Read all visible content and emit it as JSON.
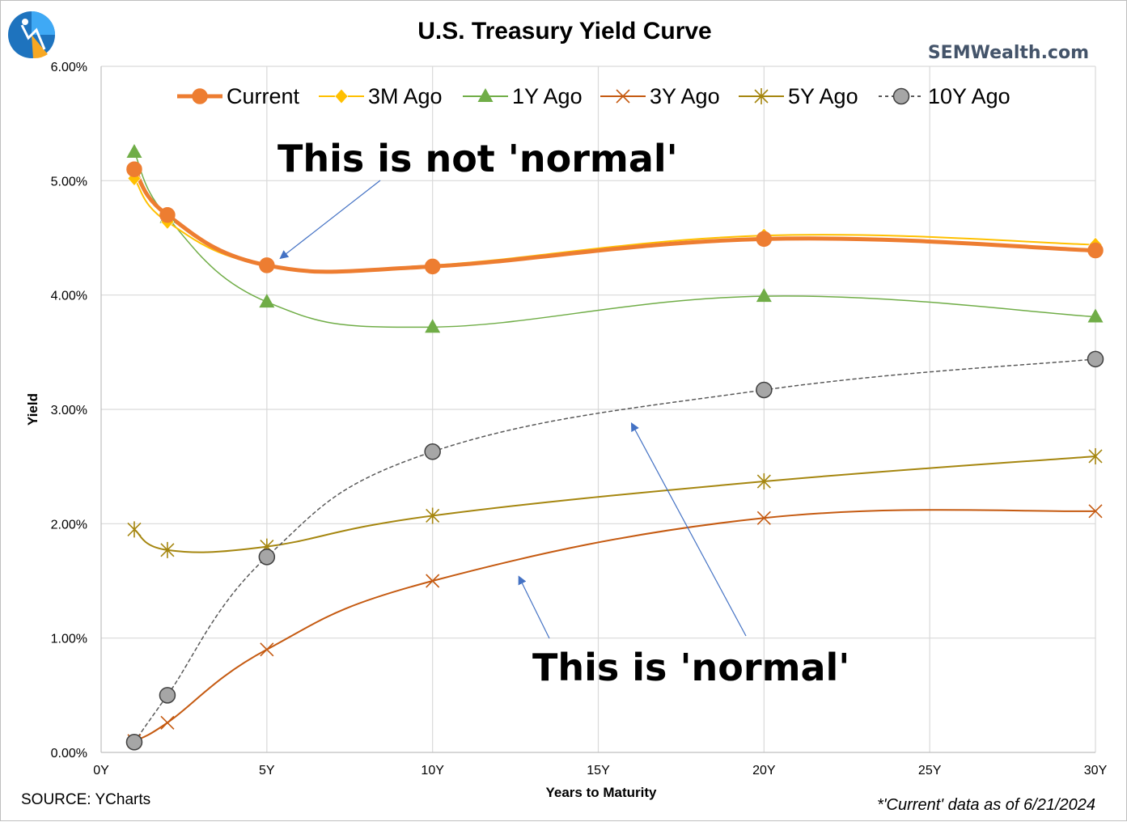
{
  "brand": {
    "site": "SEMWealth.com",
    "logo_icon": "semwealth-logo-icon"
  },
  "source_note": "SOURCE: YCharts",
  "footnote": "*'Current' data as of 6/21/2024",
  "colors": {
    "current": "#ed7d31",
    "m3": "#ffc000",
    "y1": "#70ad47",
    "y3": "#c55a11",
    "y5": "#a5860f",
    "y10": "#7f7f7f",
    "grid": "#d9d9d9",
    "arrow": "#4472c4"
  },
  "chart_data": {
    "type": "line",
    "title": "U.S. Treasury Yield Curve",
    "xlabel": "Years to Maturity",
    "ylabel": "Yield",
    "xlim": [
      0,
      30
    ],
    "ylim": [
      0,
      6
    ],
    "grid": true,
    "legend_position": "top",
    "x_ticks": [
      {
        "value": 0,
        "label": "0Y"
      },
      {
        "value": 5,
        "label": "5Y"
      },
      {
        "value": 10,
        "label": "10Y"
      },
      {
        "value": 15,
        "label": "15Y"
      },
      {
        "value": 20,
        "label": "20Y"
      },
      {
        "value": 25,
        "label": "25Y"
      },
      {
        "value": 30,
        "label": "30Y"
      }
    ],
    "y_ticks": [
      {
        "value": 0,
        "label": "0.00%"
      },
      {
        "value": 1,
        "label": "1.00%"
      },
      {
        "value": 2,
        "label": "2.00%"
      },
      {
        "value": 3,
        "label": "3.00%"
      },
      {
        "value": 4,
        "label": "4.00%"
      },
      {
        "value": 5,
        "label": "5.00%"
      },
      {
        "value": 6,
        "label": "6.00%"
      }
    ],
    "series": [
      {
        "key": "current",
        "name": "Current",
        "marker": "circle",
        "dash": false,
        "width": 5,
        "x": [
          1,
          2,
          5,
          10,
          20,
          30
        ],
        "y": [
          5.1,
          4.7,
          4.26,
          4.25,
          4.49,
          4.39
        ]
      },
      {
        "key": "m3",
        "name": "3M Ago",
        "marker": "diamond",
        "dash": false,
        "width": 2,
        "x": [
          1,
          2,
          5,
          10,
          20,
          30
        ],
        "y": [
          5.02,
          4.64,
          4.26,
          4.26,
          4.52,
          4.44
        ]
      },
      {
        "key": "y1",
        "name": "1Y Ago",
        "marker": "triangle",
        "dash": false,
        "width": 1.5,
        "x": [
          1,
          2,
          5,
          10,
          20,
          30
        ],
        "y": [
          5.25,
          4.68,
          3.94,
          3.72,
          3.99,
          3.81
        ]
      },
      {
        "key": "y3",
        "name": "3Y Ago",
        "marker": "x",
        "dash": false,
        "width": 2,
        "x": [
          1,
          2,
          5,
          10,
          20,
          30
        ],
        "y": [
          0.1,
          0.26,
          0.9,
          1.5,
          2.05,
          2.11
        ]
      },
      {
        "key": "y5",
        "name": "5Y Ago",
        "marker": "star",
        "dash": false,
        "width": 2,
        "x": [
          1,
          2,
          5,
          10,
          20,
          30
        ],
        "y": [
          1.95,
          1.77,
          1.8,
          2.07,
          2.37,
          2.59
        ]
      },
      {
        "key": "y10",
        "name": "10Y Ago",
        "marker": "circle",
        "dash": true,
        "width": 1.5,
        "x": [
          1,
          2,
          5,
          10,
          20,
          30
        ],
        "y": [
          0.09,
          0.5,
          1.71,
          2.63,
          3.17,
          3.44
        ]
      }
    ],
    "annotations": [
      {
        "text": "This is not 'normal'",
        "points_to": [
          {
            "x": 5.4,
            "y": 4.32
          }
        ]
      },
      {
        "text": "This is 'normal'",
        "points_to": [
          {
            "x": 12.6,
            "y": 1.54
          },
          {
            "x": 16.0,
            "y": 2.88
          }
        ]
      }
    ]
  }
}
